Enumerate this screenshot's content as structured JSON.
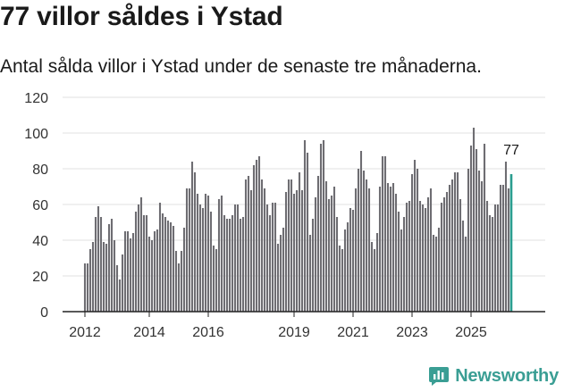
{
  "header": {
    "title": "77 villor såldes i Ystad",
    "subtitle": "Antal sålda villor i Ystad under de senaste tre månaderna."
  },
  "brand": {
    "name": "Newsworthy",
    "logo_icon": "newsworthy-chart-logo-icon"
  },
  "colors": {
    "bar": "#6e6d72",
    "highlight": "#2a9d8f",
    "grid": "#e2e2e2",
    "axis": "#222222",
    "brand": "#3a9e94"
  },
  "chart_data": {
    "type": "bar",
    "title": "77 villor såldes i Ystad",
    "subtitle": "Antal sålda villor i Ystad under de senaste tre månaderna.",
    "xlabel": "",
    "ylabel": "",
    "ylim": [
      0,
      120
    ],
    "yticks": [
      0,
      20,
      40,
      60,
      80,
      100,
      120
    ],
    "xtick_labels": [
      "2012",
      "2014",
      "2016",
      "2019",
      "2021",
      "2023",
      "2025"
    ],
    "xtick_positions": [
      0,
      24,
      46,
      78,
      100,
      122,
      144
    ],
    "grid": true,
    "start": "2012-01",
    "values": [
      27,
      27,
      35,
      39,
      53,
      59,
      53,
      39,
      38,
      49,
      52,
      40,
      26,
      18,
      32,
      45,
      45,
      41,
      44,
      56,
      60,
      64,
      54,
      54,
      42,
      40,
      45,
      46,
      61,
      55,
      53,
      51,
      50,
      48,
      34,
      27,
      34,
      47,
      69,
      69,
      84,
      78,
      66,
      60,
      58,
      66,
      65,
      56,
      37,
      35,
      63,
      65,
      54,
      52,
      52,
      54,
      60,
      60,
      52,
      53,
      74,
      76,
      68,
      82,
      85,
      87,
      74,
      69,
      60,
      54,
      61,
      61,
      38,
      43,
      47,
      67,
      74,
      74,
      66,
      68,
      78,
      68,
      96,
      89,
      43,
      52,
      64,
      76,
      94,
      96,
      73,
      63,
      65,
      70,
      53,
      37,
      35,
      46,
      50,
      58,
      57,
      69,
      80,
      90,
      79,
      74,
      69,
      39,
      35,
      44,
      70,
      87,
      87,
      72,
      70,
      72,
      66,
      56,
      46,
      53,
      61,
      62,
      77,
      85,
      80,
      62,
      60,
      58,
      64,
      69,
      43,
      42,
      47,
      61,
      64,
      67,
      71,
      74,
      78,
      78,
      63,
      51,
      42,
      80,
      93,
      103,
      91,
      79,
      73,
      94,
      62,
      54,
      53,
      60,
      60,
      71,
      71,
      84,
      69,
      77
    ],
    "highlight_last": true,
    "data_label": "77"
  }
}
